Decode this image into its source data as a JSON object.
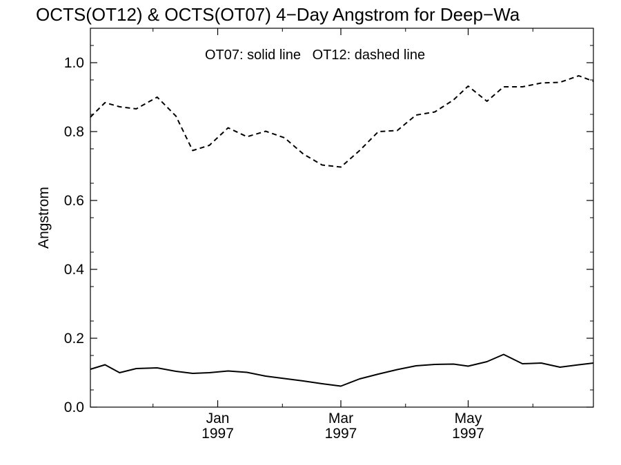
{
  "chart_data": {
    "type": "line",
    "title": "OCTS(OT12) & OCTS(OT07) 4−Day Angstrom for Deep−Wa",
    "xlabel": "",
    "ylabel": "Angstrom",
    "annotation": "OT07: solid line   OT12: dashed line",
    "ylim": [
      0.0,
      1.1
    ],
    "xlim": [
      "1996-11-01",
      "1997-06-30"
    ],
    "y_ticks": [
      "0.0",
      "0.2",
      "0.4",
      "0.6",
      "0.8",
      "1.0"
    ],
    "y_tick_values": [
      0.0,
      0.2,
      0.4,
      0.6,
      0.8,
      1.0
    ],
    "x_ticks": [
      {
        "date": "1997-01-01",
        "line1": "Jan",
        "line2": "1997"
      },
      {
        "date": "1997-03-01",
        "line1": "Mar",
        "line2": "1997"
      },
      {
        "date": "1997-05-01",
        "line1": "May",
        "line2": "1997"
      }
    ],
    "grid": false,
    "series": [
      {
        "name": "OT07",
        "style": "solid",
        "color": "#000000",
        "x": [
          "1996-11-01",
          "1996-11-08",
          "1996-11-15",
          "1996-11-23",
          "1996-12-03",
          "1996-12-12",
          "1996-12-20",
          "1996-12-28",
          "1997-01-06",
          "1997-01-15",
          "1997-01-24",
          "1997-02-02",
          "1997-02-11",
          "1997-02-20",
          "1997-03-01",
          "1997-03-10",
          "1997-03-19",
          "1997-03-28",
          "1997-04-06",
          "1997-04-15",
          "1997-04-24",
          "1997-05-01",
          "1997-05-10",
          "1997-05-18",
          "1997-05-27",
          "1997-06-05",
          "1997-06-14",
          "1997-06-23",
          "1997-06-30"
        ],
        "values": [
          0.11,
          0.123,
          0.1,
          0.112,
          0.114,
          0.104,
          0.098,
          0.1,
          0.105,
          0.101,
          0.09,
          0.083,
          0.076,
          0.068,
          0.061,
          0.082,
          0.096,
          0.109,
          0.12,
          0.124,
          0.125,
          0.119,
          0.132,
          0.153,
          0.126,
          0.128,
          0.116,
          0.123,
          0.128
        ]
      },
      {
        "name": "OT12",
        "style": "dashed",
        "color": "#000000",
        "x": [
          "1996-11-01",
          "1996-11-08",
          "1996-11-15",
          "1996-11-23",
          "1996-12-03",
          "1996-12-12",
          "1996-12-20",
          "1996-12-28",
          "1997-01-06",
          "1997-01-15",
          "1997-01-24",
          "1997-02-02",
          "1997-02-11",
          "1997-02-20",
          "1997-03-01",
          "1997-03-10",
          "1997-03-19",
          "1997-03-28",
          "1997-04-06",
          "1997-04-15",
          "1997-04-24",
          "1997-05-01",
          "1997-05-10",
          "1997-05-18",
          "1997-05-27",
          "1997-06-05",
          "1997-06-14",
          "1997-06-23",
          "1997-06-30"
        ],
        "values": [
          0.842,
          0.884,
          0.872,
          0.866,
          0.9,
          0.845,
          0.745,
          0.76,
          0.811,
          0.785,
          0.801,
          0.782,
          0.735,
          0.703,
          0.697,
          0.745,
          0.8,
          0.803,
          0.848,
          0.857,
          0.892,
          0.932,
          0.888,
          0.93,
          0.93,
          0.941,
          0.943,
          0.962,
          0.946
        ]
      }
    ]
  }
}
